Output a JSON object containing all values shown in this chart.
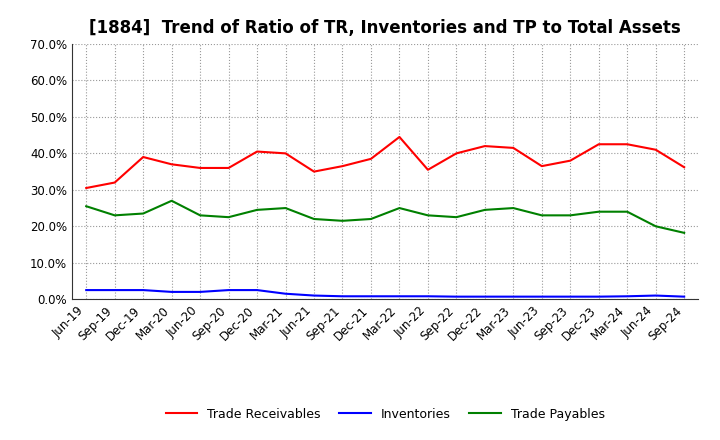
{
  "title": "[1884]  Trend of Ratio of TR, Inventories and TP to Total Assets",
  "x_labels": [
    "Jun-19",
    "Sep-19",
    "Dec-19",
    "Mar-20",
    "Jun-20",
    "Sep-20",
    "Dec-20",
    "Mar-21",
    "Jun-21",
    "Sep-21",
    "Dec-21",
    "Mar-22",
    "Jun-22",
    "Sep-22",
    "Dec-22",
    "Mar-23",
    "Jun-23",
    "Sep-23",
    "Dec-23",
    "Mar-24",
    "Jun-24",
    "Sep-24"
  ],
  "trade_receivables": [
    0.305,
    0.32,
    0.39,
    0.37,
    0.36,
    0.36,
    0.405,
    0.4,
    0.35,
    0.365,
    0.385,
    0.445,
    0.355,
    0.4,
    0.42,
    0.415,
    0.365,
    0.38,
    0.425,
    0.425,
    0.41,
    0.362
  ],
  "inventories": [
    0.025,
    0.025,
    0.025,
    0.02,
    0.02,
    0.025,
    0.025,
    0.015,
    0.01,
    0.008,
    0.008,
    0.008,
    0.008,
    0.007,
    0.007,
    0.007,
    0.007,
    0.007,
    0.007,
    0.008,
    0.01,
    0.007
  ],
  "trade_payables": [
    0.255,
    0.23,
    0.235,
    0.27,
    0.23,
    0.225,
    0.245,
    0.25,
    0.22,
    0.215,
    0.22,
    0.25,
    0.23,
    0.225,
    0.245,
    0.25,
    0.23,
    0.23,
    0.24,
    0.24,
    0.2,
    0.182
  ],
  "colors": {
    "trade_receivables": "#FF0000",
    "inventories": "#0000FF",
    "trade_payables": "#008000"
  },
  "ylim": [
    0.0,
    0.7
  ],
  "yticks": [
    0.0,
    0.1,
    0.2,
    0.3,
    0.4,
    0.5,
    0.6,
    0.7
  ],
  "background_color": "#FFFFFF",
  "grid_color": "#999999",
  "legend_labels": [
    "Trade Receivables",
    "Inventories",
    "Trade Payables"
  ],
  "title_fontsize": 12,
  "tick_fontsize": 8.5,
  "legend_fontsize": 9
}
